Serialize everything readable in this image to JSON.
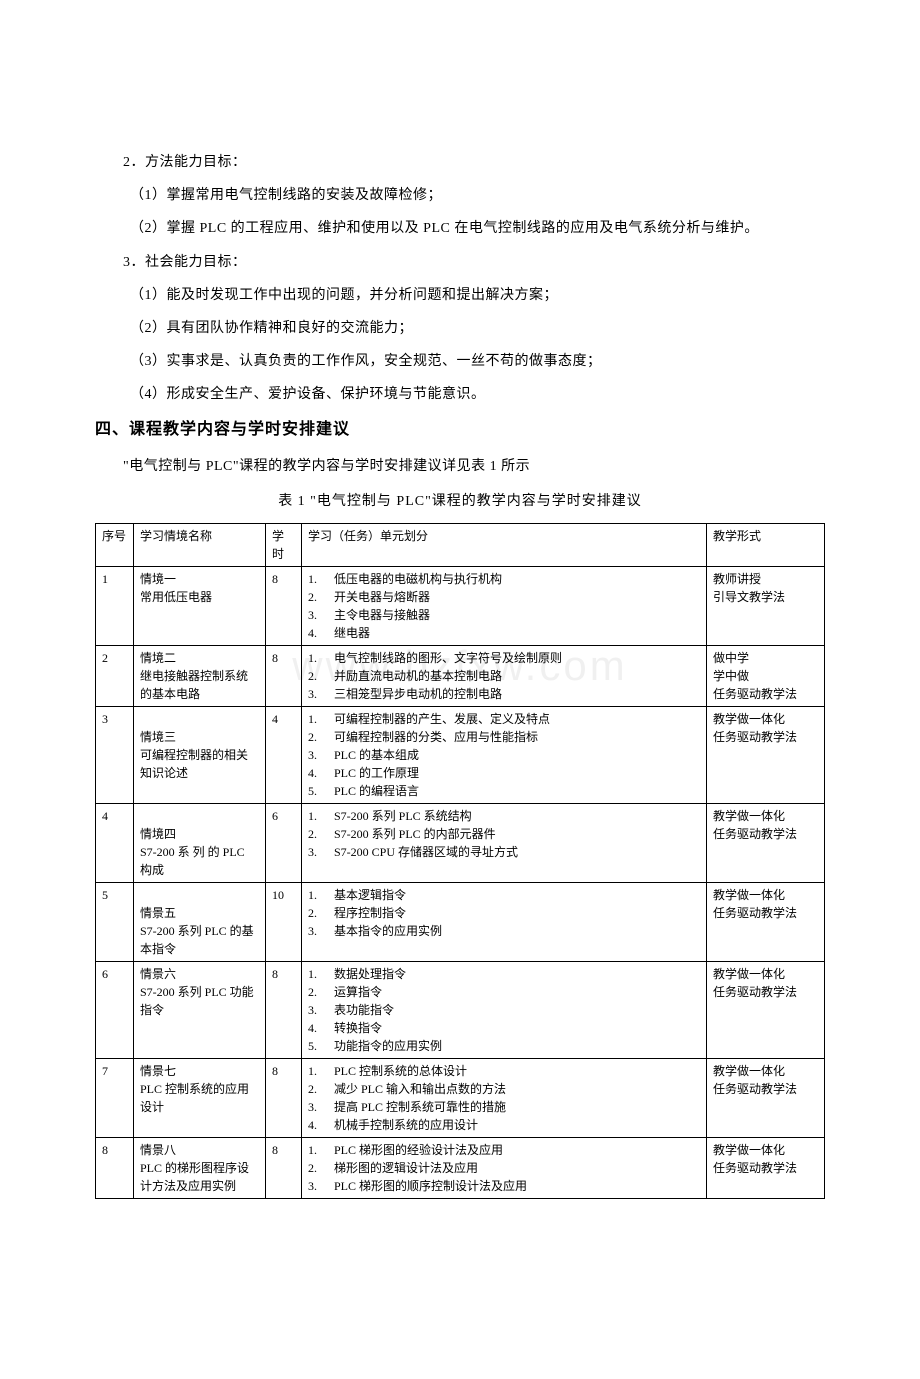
{
  "section2": {
    "heading": "2．方法能力目标：",
    "items": [
      "（1）掌握常用电气控制线路的安装及故障检修；",
      "（2）掌握 PLC 的工程应用、维护和使用以及 PLC 在电气控制线路的应用及电气系统分析与维护。"
    ]
  },
  "section3": {
    "heading": "3．社会能力目标：",
    "items": [
      "（1）能及时发现工作中出现的问题，并分析问题和提出解决方案；",
      "（2）具有团队协作精神和良好的交流能力；",
      "（3）实事求是、认真负责的工作作风，安全规范、一丝不苟的做事态度；",
      "（4）形成安全生产、爱护设备、保护环境与节能意识。"
    ]
  },
  "section4": {
    "title": "四、课程教学内容与学时安排建议",
    "intro": "\"电气控制与 PLC\"课程的教学内容与学时安排建议详见表 1 所示",
    "tableCaption": "表 1  \"电气控制与 PLC\"课程的教学内容与学时安排建议"
  },
  "watermark": "www.bzfxw.com",
  "table": {
    "headers": {
      "seq": "序号",
      "name": "学习情境名称",
      "hours": "学时",
      "tasks": "学习（任务）单元划分",
      "form": "教学形式"
    },
    "rows": [
      {
        "seq": "1",
        "name": "情境一\n常用低压电器",
        "hours": "8",
        "tasks": [
          "低压电器的电磁机构与执行机构",
          "开关电器与熔断器",
          "主令电器与接触器",
          "继电器"
        ],
        "form": "教师讲授\n引导文教学法"
      },
      {
        "seq": "2",
        "name": "情境二\n继电接触器控制系统的基本电路",
        "hours": "8",
        "tasks": [
          "电气控制线路的图形、文字符号及绘制原则",
          "并励直流电动机的基本控制电路",
          "三相笼型异步电动机的控制电路"
        ],
        "form": "做中学\n学中做\n任务驱动教学法"
      },
      {
        "seq": "3",
        "name": "\n情境三\n可编程控制器的相关知识论述",
        "hours": "4",
        "tasks": [
          "可编程控制器的产生、发展、定义及特点",
          "可编程控制器的分类、应用与性能指标",
          "PLC 的基本组成",
          "PLC 的工作原理",
          "PLC 的编程语言"
        ],
        "form": "教学做一体化\n任务驱动教学法"
      },
      {
        "seq": "4",
        "name": "\n情境四\nS7-200 系 列 的 PLC 构成",
        "hours": "6",
        "tasks": [
          "S7-200 系列 PLC 系统结构",
          "S7-200 系列 PLC 的内部元器件",
          "S7-200 CPU 存储器区域的寻址方式"
        ],
        "form": "教学做一体化\n任务驱动教学法"
      },
      {
        "seq": "5",
        "name": "\n情景五\nS7-200 系列 PLC 的基本指令",
        "hours": "10",
        "tasks": [
          "基本逻辑指令",
          "程序控制指令",
          "基本指令的应用实例"
        ],
        "form": "教学做一体化\n任务驱动教学法"
      },
      {
        "seq": "6",
        "name": "情景六\nS7-200 系列 PLC 功能指令",
        "hours": "8",
        "tasks": [
          "数据处理指令",
          "运算指令",
          "表功能指令",
          "转换指令",
          "功能指令的应用实例"
        ],
        "form": "教学做一体化\n任务驱动教学法"
      },
      {
        "seq": "7",
        "name": "情景七\nPLC 控制系统的应用设计",
        "hours": "8",
        "tasks": [
          "PLC 控制系统的总体设计",
          "减少 PLC 输入和输出点数的方法",
          "提高 PLC 控制系统可靠性的措施",
          "机械手控制系统的应用设计"
        ],
        "form": "教学做一体化\n任务驱动教学法"
      },
      {
        "seq": "8",
        "name": "情景八\nPLC 的梯形图程序设计方法及应用实例",
        "hours": "8",
        "tasks": [
          "PLC 梯形图的经验设计法及应用",
          "梯形图的逻辑设计法及应用",
          "PLC 梯形图的顺序控制设计法及应用"
        ],
        "form": "教学做一体化\n任务驱动教学法"
      }
    ]
  }
}
